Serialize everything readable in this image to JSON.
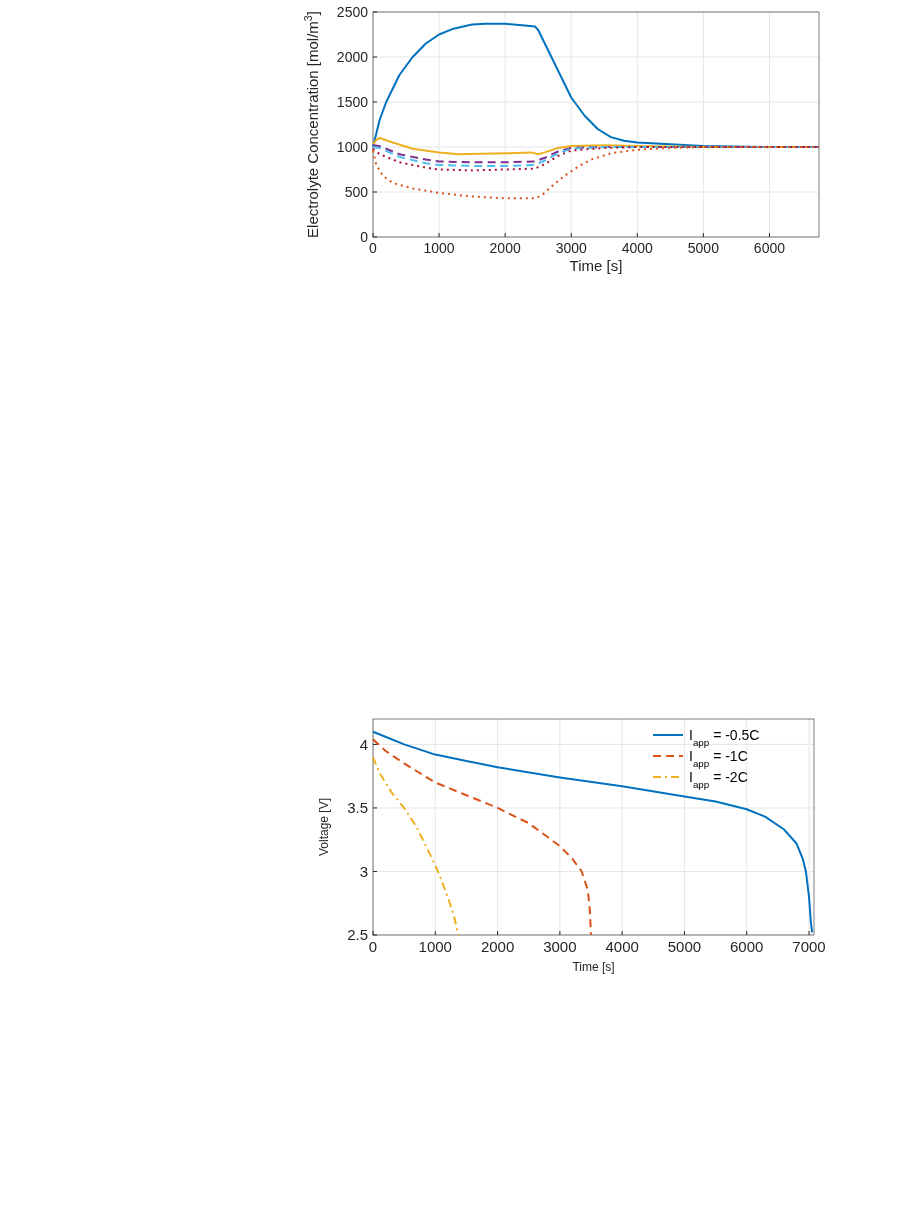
{
  "chart_data": [
    {
      "type": "line",
      "xlabel": "Time [s]",
      "ylabel": "Electrolyte Concentration [mol/m$^{3}$]",
      "xlim": [
        0,
        6750
      ],
      "ylim": [
        0,
        2500
      ],
      "xticks": [
        0,
        1000,
        2000,
        3000,
        4000,
        5000,
        6000
      ],
      "yticks": [
        0,
        500,
        1000,
        1500,
        2000,
        2500
      ],
      "grid": true,
      "legend": false,
      "series": [
        {
          "color": "#0072bd",
          "line_style": "solid",
          "x": [
            0,
            50,
            100,
            200,
            400,
            600,
            800,
            1000,
            1200,
            1500,
            1700,
            2000,
            2300,
            2450,
            2500,
            2600,
            2800,
            3000,
            3200,
            3400,
            3600,
            3800,
            4000,
            4500,
            5000,
            6000,
            6750
          ],
          "values": [
            1000,
            1150,
            1300,
            1500,
            1800,
            2000,
            2150,
            2250,
            2310,
            2360,
            2370,
            2370,
            2350,
            2340,
            2300,
            2150,
            1850,
            1550,
            1350,
            1200,
            1110,
            1070,
            1050,
            1030,
            1010,
            1000,
            1000
          ]
        },
        {
          "color": "#edb120",
          "line_style": "solid",
          "x": [
            0,
            50,
            100,
            300,
            600,
            1000,
            1300,
            2000,
            2400,
            2500,
            2600,
            2800,
            3000,
            3500,
            4000,
            5000,
            6750
          ],
          "values": [
            1030,
            1080,
            1100,
            1050,
            980,
            940,
            920,
            930,
            940,
            920,
            940,
            990,
            1010,
            1020,
            1010,
            1000,
            1000
          ]
        },
        {
          "color": "#7e2f8e",
          "line_style": "dashed",
          "x": [
            0,
            100,
            400,
            800,
            1000,
            1500,
            2000,
            2450,
            2600,
            2800,
            3000,
            3500,
            6750
          ],
          "values": [
            1020,
            1010,
            920,
            860,
            840,
            830,
            830,
            840,
            880,
            950,
            990,
            1000,
            1000
          ]
        },
        {
          "color": "#4dbeee",
          "line_style": "dashed",
          "x": [
            0,
            100,
            400,
            800,
            1000,
            1500,
            2000,
            2450,
            2600,
            2800,
            3000,
            3500,
            6750
          ],
          "values": [
            1000,
            990,
            890,
            820,
            800,
            790,
            790,
            800,
            850,
            930,
            980,
            1000,
            1000
          ]
        },
        {
          "color": "#a2142f",
          "line_style": "dotted",
          "x": [
            0,
            100,
            400,
            800,
            1000,
            1500,
            2000,
            2450,
            2600,
            2800,
            3000,
            3500,
            4000,
            6750
          ],
          "values": [
            980,
            920,
            830,
            770,
            750,
            740,
            750,
            760,
            810,
            900,
            960,
            990,
            1000,
            1000
          ]
        },
        {
          "color": "#d95319",
          "line_style": "dotted",
          "x": [
            0,
            50,
            150,
            300,
            600,
            1000,
            1500,
            2000,
            2450,
            2550,
            2700,
            2900,
            3100,
            3300,
            3600,
            4000,
            4500,
            5000,
            6750
          ],
          "values": [
            960,
            800,
            680,
            600,
            540,
            490,
            450,
            430,
            430,
            460,
            560,
            680,
            780,
            860,
            930,
            970,
            990,
            1000,
            1000
          ]
        }
      ]
    },
    {
      "type": "line",
      "xlabel": "Time [s]",
      "ylabel": "Voltage [V]",
      "xlim": [
        0,
        7080
      ],
      "ylim": [
        2.5,
        4.2
      ],
      "xticks": [
        0,
        1000,
        2000,
        3000,
        4000,
        5000,
        6000,
        7000
      ],
      "yticks": [
        2.5,
        3,
        3.5,
        4
      ],
      "grid": true,
      "legend": "top right",
      "series": [
        {
          "name": "I$_{app}$ = -0.5C",
          "color": "#0072bd",
          "line_style": "solid",
          "x": [
            0,
            200,
            500,
            1000,
            1500,
            2000,
            3000,
            4000,
            5000,
            5500,
            6000,
            6300,
            6600,
            6800,
            6900,
            6950,
            7000,
            7030,
            7050
          ],
          "values": [
            4.1,
            4.06,
            4.0,
            3.92,
            3.87,
            3.82,
            3.74,
            3.67,
            3.59,
            3.55,
            3.49,
            3.43,
            3.33,
            3.22,
            3.1,
            3.0,
            2.8,
            2.6,
            2.52
          ]
        },
        {
          "name": "I$_{app}$ = -1C",
          "color": "#d95319",
          "line_style": "dashed",
          "x": [
            0,
            200,
            500,
            1000,
            1500,
            2000,
            2500,
            3000,
            3200,
            3350,
            3450,
            3480,
            3500
          ],
          "values": [
            4.04,
            3.95,
            3.85,
            3.7,
            3.6,
            3.5,
            3.38,
            3.2,
            3.1,
            3.0,
            2.85,
            2.7,
            2.5
          ]
        },
        {
          "name": "I$_{app}$ = -2C",
          "color": "#edb120",
          "line_style": "dashdot",
          "x": [
            0,
            100,
            300,
            500,
            700,
            900,
            1000,
            1100,
            1200,
            1300,
            1370
          ],
          "values": [
            3.9,
            3.78,
            3.62,
            3.5,
            3.35,
            3.15,
            3.05,
            2.93,
            2.8,
            2.65,
            2.5
          ]
        }
      ]
    }
  ]
}
